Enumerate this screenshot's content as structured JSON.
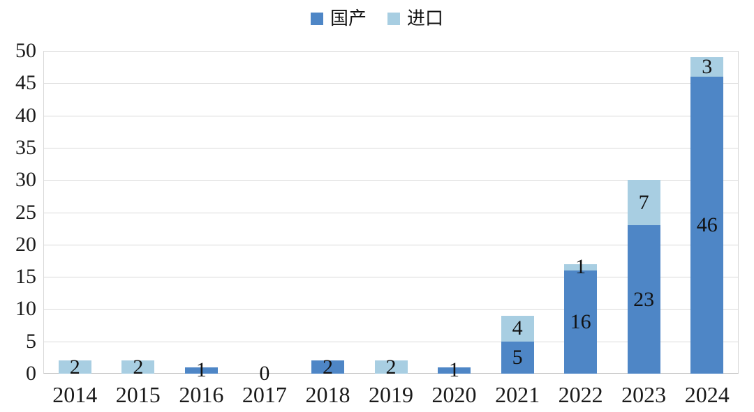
{
  "legend": {
    "items": [
      {
        "label": "国产",
        "slug": "domestic"
      },
      {
        "label": "进口",
        "slug": "import"
      }
    ]
  },
  "chart_data": {
    "type": "bar",
    "stacked": true,
    "title": "",
    "xlabel": "",
    "ylabel": "",
    "categories": [
      "2014",
      "2015",
      "2016",
      "2017",
      "2018",
      "2019",
      "2020",
      "2021",
      "2022",
      "2023",
      "2024"
    ],
    "series": [
      {
        "name": "国产",
        "slug": "domestic",
        "color": "#4e86c6",
        "values": [
          0,
          0,
          1,
          0,
          2,
          0,
          1,
          5,
          16,
          23,
          46
        ],
        "labels": [
          "",
          "",
          "1",
          "0",
          "2",
          "",
          "1",
          "5",
          "16",
          "23",
          "46"
        ]
      },
      {
        "name": "进口",
        "slug": "import",
        "color": "#a8cee2",
        "values": [
          2,
          2,
          0,
          0,
          0,
          2,
          0,
          4,
          1,
          7,
          3
        ],
        "labels": [
          "2",
          "2",
          "",
          "",
          "",
          "2",
          "",
          "4",
          "1",
          "7",
          "3"
        ]
      }
    ],
    "totals": [
      2,
      2,
      1,
      0,
      2,
      2,
      1,
      9,
      17,
      30,
      49
    ],
    "ylim": [
      0,
      50
    ],
    "yticks": [
      0,
      5,
      10,
      15,
      20,
      25,
      30,
      35,
      40,
      45,
      50
    ],
    "grid": true,
    "legend_position": "top"
  }
}
